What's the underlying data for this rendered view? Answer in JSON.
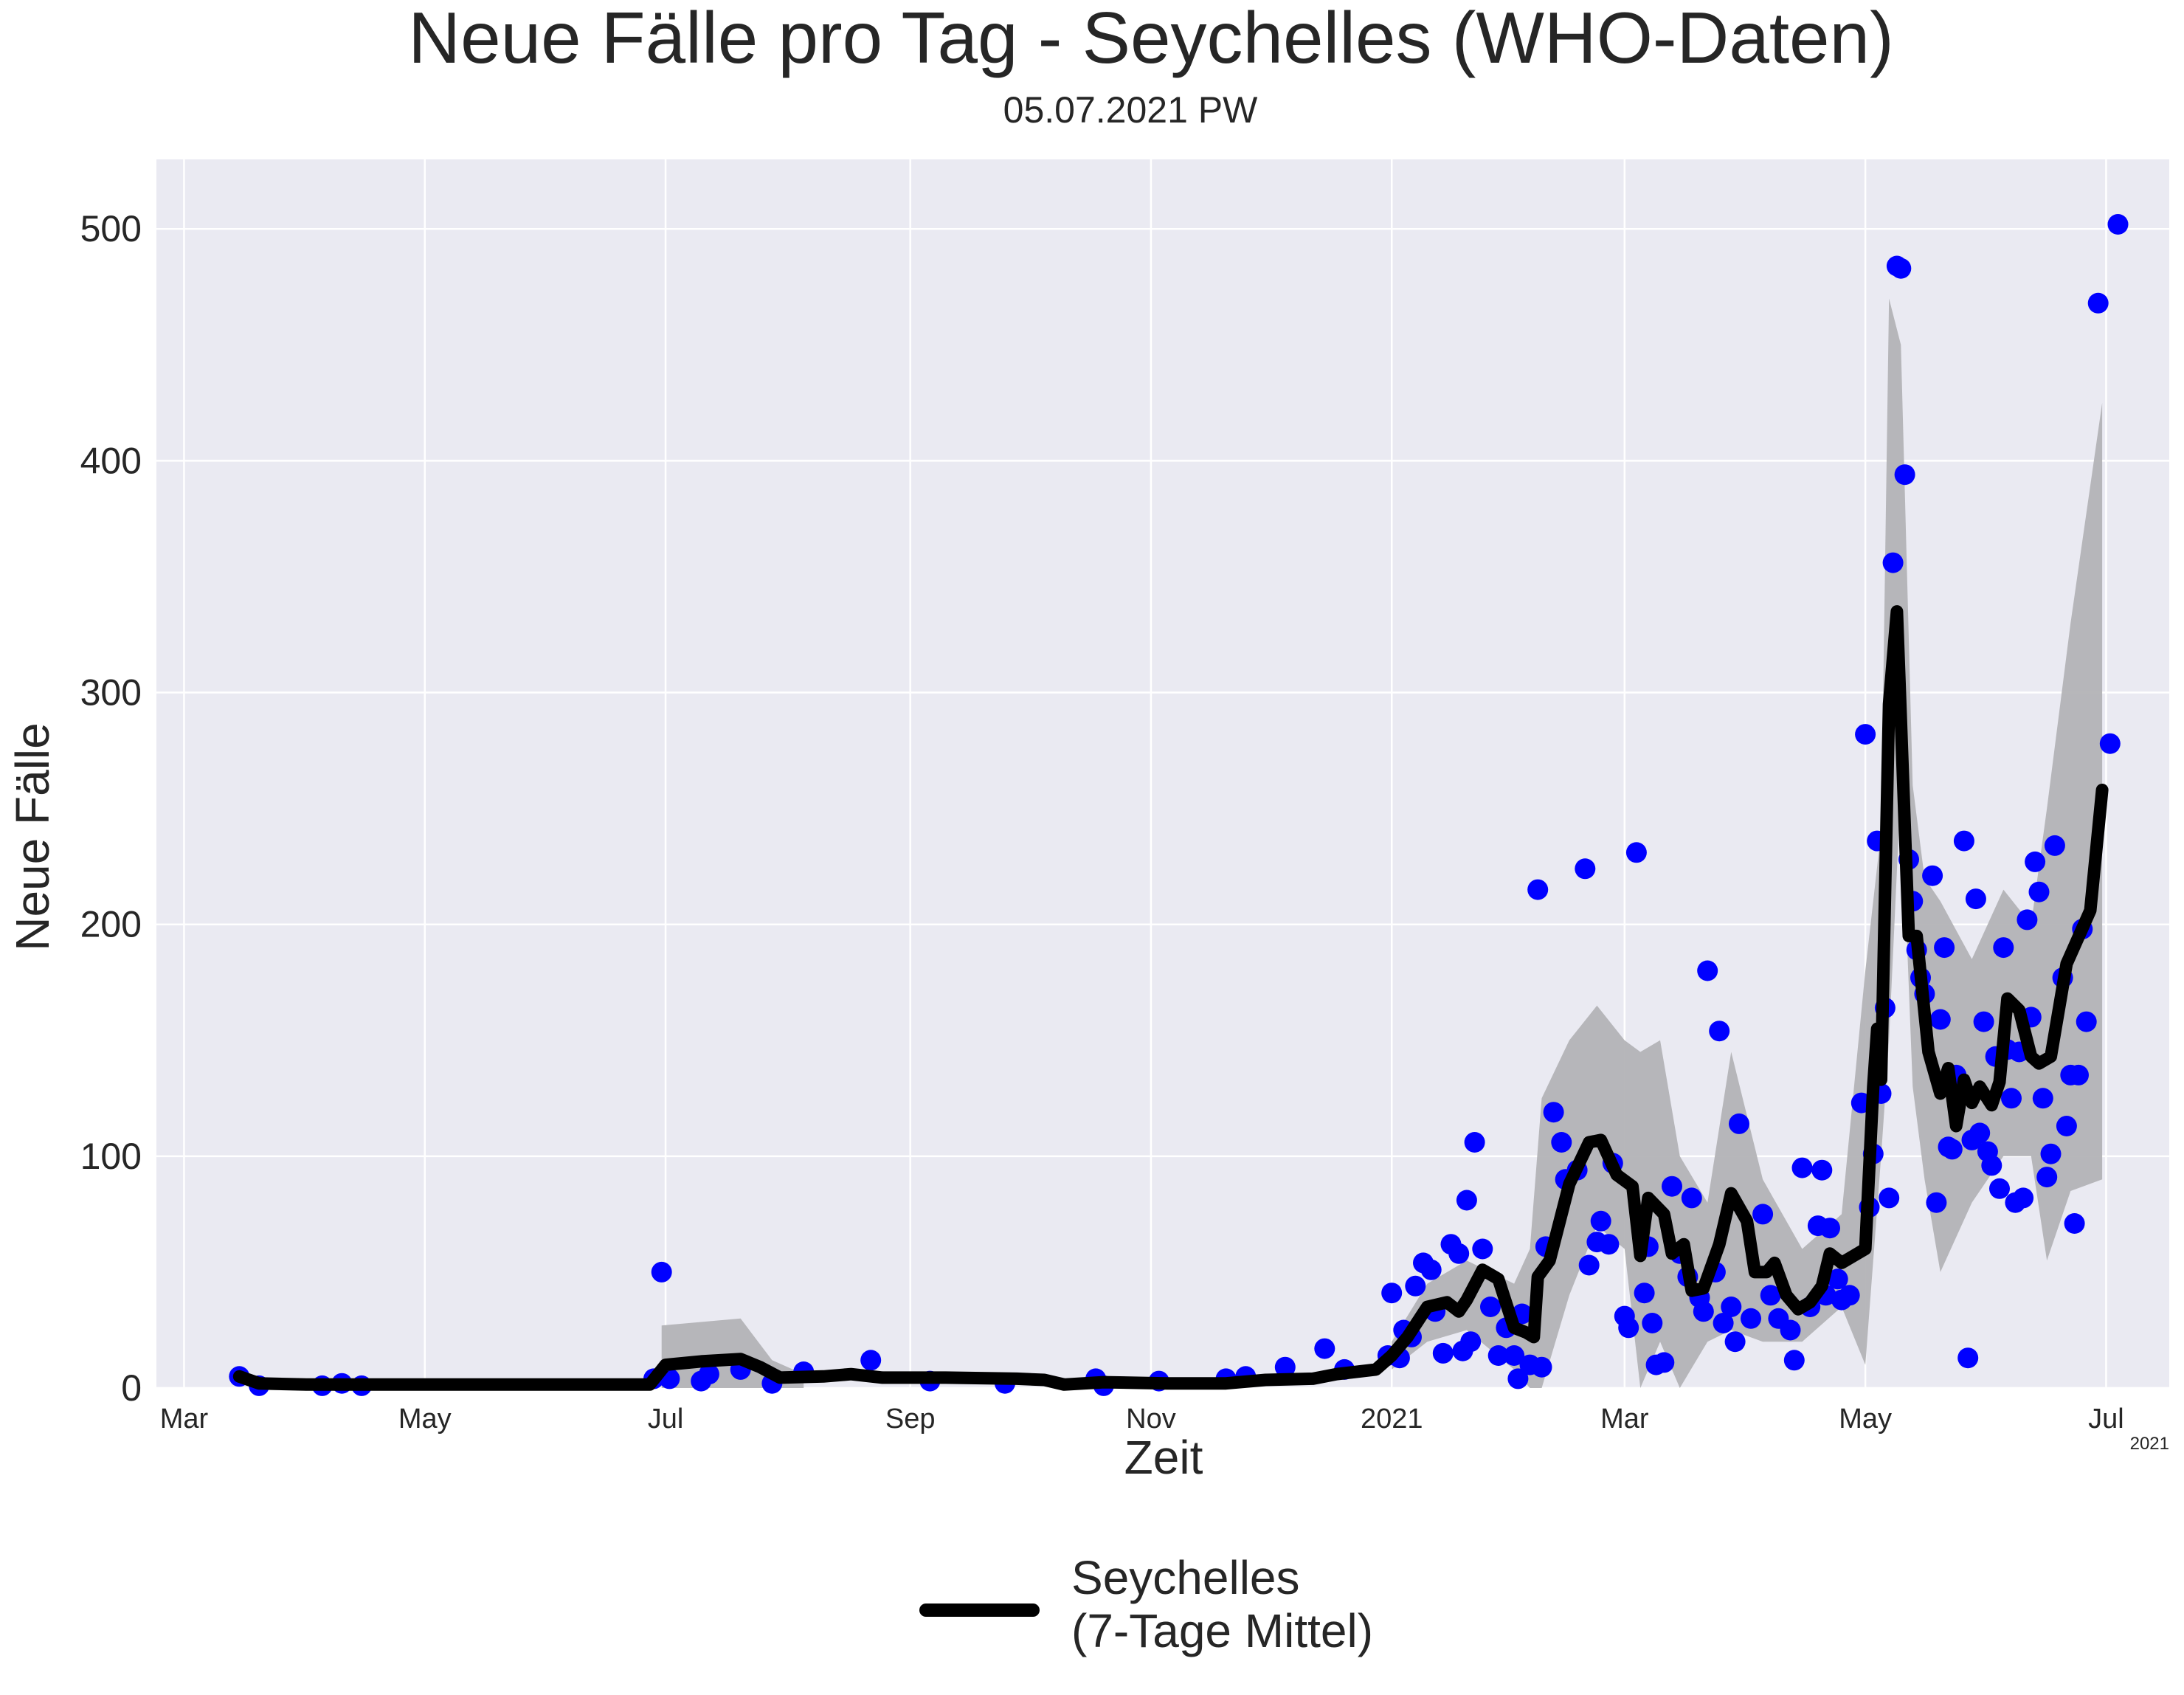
{
  "chart_data": {
    "type": "line",
    "title": "Neue Fälle pro Tag - Seychelles (WHO-Daten)",
    "subtitle": "05.07.2021 PW",
    "xlabel": "Zeit",
    "ylabel": "Neue Fälle",
    "xlim": [
      "2020-02-23",
      "2021-07-17"
    ],
    "ylim": [
      0,
      530
    ],
    "x_ticks": [
      {
        "date": "2020-03-01",
        "label": "Mar"
      },
      {
        "date": "2020-05-01",
        "label": "May"
      },
      {
        "date": "2020-07-01",
        "label": "Jul"
      },
      {
        "date": "2020-09-01",
        "label": "Sep"
      },
      {
        "date": "2020-11-01",
        "label": "Nov"
      },
      {
        "date": "2021-01-01",
        "label": "2021"
      },
      {
        "date": "2021-03-01",
        "label": "Mar"
      },
      {
        "date": "2021-05-01",
        "label": "May"
      },
      {
        "date": "2021-07-01",
        "label": "Jul"
      }
    ],
    "x_offset_label": "2021",
    "y_ticks": [
      0,
      100,
      200,
      300,
      400,
      500
    ],
    "grid": true,
    "legend_position": "bottom-center",
    "colors": {
      "background": "#eaeaf2",
      "grid": "#ffffff",
      "points": "#0000ff",
      "line": "#000000",
      "band": "#b3b3b6"
    },
    "series": [
      {
        "name": "Seychelles\n(7-Tage Mittel)",
        "type": "line",
        "points": [
          [
            "2020-03-15",
            5
          ],
          [
            "2020-03-20",
            2
          ],
          [
            "2020-04-01",
            1.5
          ],
          [
            "2020-05-01",
            1.5
          ],
          [
            "2020-06-01",
            1.5
          ],
          [
            "2020-06-27",
            1.5
          ],
          [
            "2020-07-01",
            10
          ],
          [
            "2020-07-10",
            11.5
          ],
          [
            "2020-07-20",
            12.5
          ],
          [
            "2020-07-25",
            9
          ],
          [
            "2020-07-30",
            4.5
          ],
          [
            "2020-08-10",
            5
          ],
          [
            "2020-08-17",
            6
          ],
          [
            "2020-08-25",
            4.5
          ],
          [
            "2020-09-10",
            4.5
          ],
          [
            "2020-09-28",
            4
          ],
          [
            "2020-10-05",
            3.5
          ],
          [
            "2020-10-10",
            1.5
          ],
          [
            "2020-10-20",
            2.5
          ],
          [
            "2020-11-05",
            2
          ],
          [
            "2020-11-20",
            2
          ],
          [
            "2020-11-30",
            3.5
          ],
          [
            "2020-12-12",
            4
          ],
          [
            "2020-12-18",
            6
          ],
          [
            "2020-12-28",
            8
          ],
          [
            "2021-01-01",
            14
          ],
          [
            "2021-01-05",
            22
          ],
          [
            "2021-01-10",
            35
          ],
          [
            "2021-01-15",
            37
          ],
          [
            "2021-01-18",
            33
          ],
          [
            "2021-01-20",
            38
          ],
          [
            "2021-01-24",
            51
          ],
          [
            "2021-01-28",
            47
          ],
          [
            "2021-02-01",
            26
          ],
          [
            "2021-02-04",
            24
          ],
          [
            "2021-02-06",
            22
          ],
          [
            "2021-02-07",
            48
          ],
          [
            "2021-02-10",
            55
          ],
          [
            "2021-02-15",
            88
          ],
          [
            "2021-02-20",
            106
          ],
          [
            "2021-02-23",
            107
          ],
          [
            "2021-02-27",
            92
          ],
          [
            "2021-03-03",
            87
          ],
          [
            "2021-03-05",
            57
          ],
          [
            "2021-03-07",
            82
          ],
          [
            "2021-03-11",
            75
          ],
          [
            "2021-03-13",
            58
          ],
          [
            "2021-03-16",
            62
          ],
          [
            "2021-03-18",
            42
          ],
          [
            "2021-03-21",
            43
          ],
          [
            "2021-03-25",
            62
          ],
          [
            "2021-03-28",
            84
          ],
          [
            "2021-04-01",
            72
          ],
          [
            "2021-04-03",
            50
          ],
          [
            "2021-04-06",
            50
          ],
          [
            "2021-04-08",
            54
          ],
          [
            "2021-04-11",
            40
          ],
          [
            "2021-04-14",
            34
          ],
          [
            "2021-04-17",
            37
          ],
          [
            "2021-04-20",
            44
          ],
          [
            "2021-04-22",
            58
          ],
          [
            "2021-04-25",
            54
          ],
          [
            "2021-04-28",
            57
          ],
          [
            "2021-05-01",
            60
          ],
          [
            "2021-05-03",
            130
          ],
          [
            "2021-05-04",
            155
          ],
          [
            "2021-05-05",
            133
          ],
          [
            "2021-05-07",
            295
          ],
          [
            "2021-05-09",
            335
          ],
          [
            "2021-05-12",
            195
          ],
          [
            "2021-05-14",
            195
          ],
          [
            "2021-05-17",
            145
          ],
          [
            "2021-05-20",
            127
          ],
          [
            "2021-05-22",
            138
          ],
          [
            "2021-05-24",
            113
          ],
          [
            "2021-05-26",
            133
          ],
          [
            "2021-05-28",
            123
          ],
          [
            "2021-05-30",
            130
          ],
          [
            "2021-06-02",
            122
          ],
          [
            "2021-06-04",
            132
          ],
          [
            "2021-06-06",
            168
          ],
          [
            "2021-06-09",
            163
          ],
          [
            "2021-06-12",
            143
          ],
          [
            "2021-06-14",
            140
          ],
          [
            "2021-06-17",
            143
          ],
          [
            "2021-06-21",
            183
          ],
          [
            "2021-06-27",
            206
          ],
          [
            "2021-06-30",
            258
          ]
        ],
        "band": [
          [
            "2021-01-01",
            8,
            20
          ],
          [
            "2021-01-10",
            20,
            45
          ],
          [
            "2021-01-20",
            25,
            55
          ],
          [
            "2021-02-01",
            8,
            45
          ],
          [
            "2021-02-05",
            -20,
            60
          ],
          [
            "2021-02-08",
            0,
            125
          ],
          [
            "2021-02-15",
            40,
            150
          ],
          [
            "2021-02-22",
            70,
            165
          ],
          [
            "2021-03-01",
            60,
            150
          ],
          [
            "2021-03-05",
            -15,
            145
          ],
          [
            "2021-03-10",
            20,
            150
          ],
          [
            "2021-03-15",
            0,
            100
          ],
          [
            "2021-03-22",
            20,
            80
          ],
          [
            "2021-03-28",
            25,
            145
          ],
          [
            "2021-04-05",
            20,
            90
          ],
          [
            "2021-04-15",
            20,
            60
          ],
          [
            "2021-04-25",
            35,
            75
          ],
          [
            "2021-05-01",
            10,
            180
          ],
          [
            "2021-05-05",
            100,
            240
          ],
          [
            "2021-05-07",
            150,
            470
          ],
          [
            "2021-05-10",
            260,
            450
          ],
          [
            "2021-05-13",
            130,
            260
          ],
          [
            "2021-05-16",
            90,
            220
          ],
          [
            "2021-05-20",
            50,
            210
          ],
          [
            "2021-05-28",
            80,
            185
          ],
          [
            "2021-06-05",
            100,
            215
          ],
          [
            "2021-06-12",
            100,
            200
          ],
          [
            "2021-06-16",
            55,
            250
          ],
          [
            "2021-06-22",
            85,
            330
          ],
          [
            "2021-06-30",
            90,
            425
          ]
        ]
      }
    ],
    "scatter": [
      [
        "2020-03-15",
        5
      ],
      [
        "2020-03-20",
        1
      ],
      [
        "2020-04-05",
        1
      ],
      [
        "2020-04-10",
        2
      ],
      [
        "2020-04-15",
        1
      ],
      [
        "2020-06-28",
        4
      ],
      [
        "2020-06-30",
        50
      ],
      [
        "2020-07-02",
        4
      ],
      [
        "2020-07-10",
        3
      ],
      [
        "2020-07-12",
        6
      ],
      [
        "2020-07-20",
        8
      ],
      [
        "2020-07-28",
        2
      ],
      [
        "2020-08-05",
        7
      ],
      [
        "2020-08-22",
        12
      ],
      [
        "2020-09-06",
        3
      ],
      [
        "2020-09-25",
        2
      ],
      [
        "2020-10-18",
        4
      ],
      [
        "2020-10-20",
        1
      ],
      [
        "2020-11-03",
        3
      ],
      [
        "2020-11-20",
        4
      ],
      [
        "2020-11-25",
        5
      ],
      [
        "2020-12-05",
        9
      ],
      [
        "2020-12-15",
        17
      ],
      [
        "2020-12-20",
        8
      ],
      [
        "2020-12-31",
        14
      ],
      [
        "2021-01-01",
        41
      ],
      [
        "2021-01-03",
        13
      ],
      [
        "2021-01-04",
        25
      ],
      [
        "2021-01-06",
        22
      ],
      [
        "2021-01-07",
        44
      ],
      [
        "2021-01-09",
        54
      ],
      [
        "2021-01-11",
        51
      ],
      [
        "2021-01-12",
        33
      ],
      [
        "2021-01-14",
        15
      ],
      [
        "2021-01-16",
        62
      ],
      [
        "2021-01-18",
        58
      ],
      [
        "2021-01-19",
        16
      ],
      [
        "2021-01-20",
        81
      ],
      [
        "2021-01-21",
        20
      ],
      [
        "2021-01-22",
        106
      ],
      [
        "2021-01-24",
        60
      ],
      [
        "2021-01-26",
        35
      ],
      [
        "2021-01-28",
        14
      ],
      [
        "2021-01-30",
        26
      ],
      [
        "2021-02-01",
        14
      ],
      [
        "2021-02-02",
        4
      ],
      [
        "2021-02-03",
        32
      ],
      [
        "2021-02-05",
        10
      ],
      [
        "2021-02-07",
        215
      ],
      [
        "2021-02-08",
        9
      ],
      [
        "2021-02-09",
        61
      ],
      [
        "2021-02-11",
        119
      ],
      [
        "2021-02-13",
        106
      ],
      [
        "2021-02-14",
        90
      ],
      [
        "2021-02-17",
        94
      ],
      [
        "2021-02-19",
        224
      ],
      [
        "2021-02-20",
        53
      ],
      [
        "2021-02-22",
        63
      ],
      [
        "2021-02-23",
        72
      ],
      [
        "2021-02-25",
        62
      ],
      [
        "2021-02-26",
        97
      ],
      [
        "2021-03-01",
        31
      ],
      [
        "2021-03-02",
        26
      ],
      [
        "2021-03-04",
        231
      ],
      [
        "2021-03-06",
        41
      ],
      [
        "2021-03-07",
        61
      ],
      [
        "2021-03-08",
        28
      ],
      [
        "2021-03-09",
        10
      ],
      [
        "2021-03-11",
        11
      ],
      [
        "2021-03-13",
        87
      ],
      [
        "2021-03-15",
        58
      ],
      [
        "2021-03-17",
        48
      ],
      [
        "2021-03-18",
        82
      ],
      [
        "2021-03-20",
        39
      ],
      [
        "2021-03-21",
        33
      ],
      [
        "2021-03-22",
        180
      ],
      [
        "2021-03-24",
        50
      ],
      [
        "2021-03-25",
        154
      ],
      [
        "2021-03-26",
        28
      ],
      [
        "2021-03-28",
        35
      ],
      [
        "2021-03-29",
        20
      ],
      [
        "2021-03-30",
        114
      ],
      [
        "2021-04-02",
        30
      ],
      [
        "2021-04-05",
        75
      ],
      [
        "2021-04-07",
        40
      ],
      [
        "2021-04-09",
        30
      ],
      [
        "2021-04-12",
        25
      ],
      [
        "2021-04-13",
        12
      ],
      [
        "2021-04-15",
        95
      ],
      [
        "2021-04-17",
        35
      ],
      [
        "2021-04-19",
        70
      ],
      [
        "2021-04-20",
        94
      ],
      [
        "2021-04-21",
        40
      ],
      [
        "2021-04-22",
        69
      ],
      [
        "2021-04-24",
        47
      ],
      [
        "2021-04-25",
        38
      ],
      [
        "2021-04-27",
        40
      ],
      [
        "2021-04-30",
        123
      ],
      [
        "2021-05-01",
        282
      ],
      [
        "2021-05-02",
        78
      ],
      [
        "2021-05-03",
        101
      ],
      [
        "2021-05-04",
        236
      ],
      [
        "2021-05-05",
        127
      ],
      [
        "2021-05-06",
        164
      ],
      [
        "2021-05-07",
        82
      ],
      [
        "2021-05-08",
        356
      ],
      [
        "2021-05-09",
        484
      ],
      [
        "2021-05-10",
        483
      ],
      [
        "2021-05-11",
        394
      ],
      [
        "2021-05-12",
        228
      ],
      [
        "2021-05-13",
        210
      ],
      [
        "2021-05-14",
        189
      ],
      [
        "2021-05-15",
        177
      ],
      [
        "2021-05-16",
        170
      ],
      [
        "2021-05-18",
        221
      ],
      [
        "2021-05-19",
        80
      ],
      [
        "2021-05-20",
        159
      ],
      [
        "2021-05-21",
        190
      ],
      [
        "2021-05-22",
        104
      ],
      [
        "2021-05-23",
        103
      ],
      [
        "2021-05-24",
        135
      ],
      [
        "2021-05-26",
        236
      ],
      [
        "2021-05-27",
        13
      ],
      [
        "2021-05-28",
        107
      ],
      [
        "2021-05-29",
        211
      ],
      [
        "2021-05-30",
        110
      ],
      [
        "2021-05-31",
        158
      ],
      [
        "2021-06-01",
        102
      ],
      [
        "2021-06-02",
        96
      ],
      [
        "2021-06-03",
        143
      ],
      [
        "2021-06-04",
        86
      ],
      [
        "2021-06-05",
        190
      ],
      [
        "2021-06-06",
        146
      ],
      [
        "2021-06-07",
        125
      ],
      [
        "2021-06-08",
        80
      ],
      [
        "2021-06-09",
        145
      ],
      [
        "2021-06-10",
        82
      ],
      [
        "2021-06-11",
        202
      ],
      [
        "2021-06-12",
        160
      ],
      [
        "2021-06-13",
        227
      ],
      [
        "2021-06-14",
        214
      ],
      [
        "2021-06-15",
        125
      ],
      [
        "2021-06-16",
        91
      ],
      [
        "2021-06-17",
        101
      ],
      [
        "2021-06-18",
        234
      ],
      [
        "2021-06-20",
        177
      ],
      [
        "2021-06-21",
        113
      ],
      [
        "2021-06-22",
        135
      ],
      [
        "2021-06-23",
        71
      ],
      [
        "2021-06-24",
        135
      ],
      [
        "2021-06-25",
        198
      ],
      [
        "2021-06-26",
        158
      ],
      [
        "2021-06-29",
        468
      ],
      [
        "2021-07-02",
        278
      ],
      [
        "2021-07-04",
        502
      ]
    ]
  }
}
